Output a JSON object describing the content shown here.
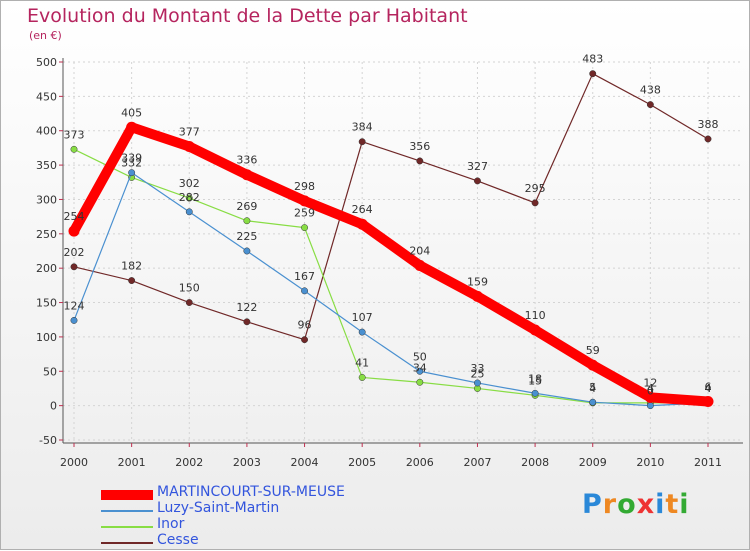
{
  "chart_data": {
    "type": "line",
    "title": "Evolution du Montant de la Dette par Habitant",
    "unit_label": "(en €)",
    "categories": [
      "2000",
      "2001",
      "2002",
      "2003",
      "2004",
      "2005",
      "2006",
      "2007",
      "2008",
      "2009",
      "2010",
      "2011"
    ],
    "ylim": [
      -50,
      500
    ],
    "yticks": [
      -50,
      0,
      50,
      100,
      150,
      200,
      250,
      300,
      350,
      400,
      450,
      500
    ],
    "series": [
      {
        "name": "MARTINCOURT-SUR-MEUSE",
        "color": "#ff0000",
        "values": [
          254,
          405,
          377,
          336,
          298,
          264,
          204,
          159,
          110,
          59,
          12,
          6
        ],
        "labels": [
          "254",
          "405",
          "377",
          "336",
          "298",
          "264",
          "204",
          "159",
          "110",
          "59",
          "12",
          "6"
        ]
      },
      {
        "name": "Luzy-Saint-Martin",
        "color": "#4a90d0",
        "values": [
          124,
          339,
          282,
          225,
          167,
          107,
          50,
          33,
          18,
          5,
          0,
          4
        ],
        "labels": [
          "124",
          "339",
          "282",
          "225",
          "167",
          "107",
          "50",
          "33",
          "18",
          "5",
          "0",
          "4"
        ]
      },
      {
        "name": "Inor",
        "color": "#88dd44",
        "values": [
          373,
          332,
          302,
          269,
          259,
          41,
          34,
          25,
          15,
          4,
          4,
          4
        ],
        "labels": [
          "373",
          "332",
          "302",
          "269",
          "259",
          "41",
          "34",
          "25",
          "15",
          "4",
          "4",
          "4"
        ]
      },
      {
        "name": "Cesse",
        "color": "#702828",
        "values": [
          202,
          182,
          150,
          122,
          96,
          384,
          356,
          327,
          295,
          483,
          438,
          388
        ],
        "labels": [
          "202",
          "182",
          "150",
          "122",
          "96",
          "384",
          "356",
          "327",
          "295",
          "483",
          "438",
          "388"
        ]
      }
    ],
    "grid": true,
    "legend_position": "bottom-left"
  },
  "logo": {
    "letters": [
      "P",
      "r",
      "o",
      "x",
      "i",
      "t",
      "i"
    ],
    "colors": [
      "#2a88d8",
      "#ee8822",
      "#33aa33",
      "#ee3333",
      "#2a88d8",
      "#ee8822",
      "#33aa33"
    ]
  }
}
